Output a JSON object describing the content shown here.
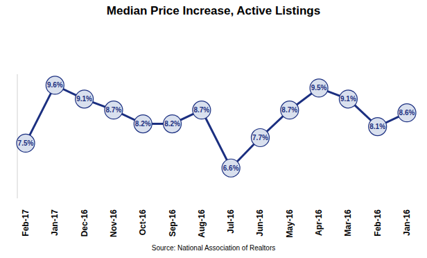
{
  "chart_data": {
    "type": "line",
    "title": "Median Price Increase, Active Listings",
    "source": "Source: National Association of Realtors",
    "categories": [
      "Feb-17",
      "Jan-17",
      "Dec-16",
      "Nov-16",
      "Oct-16",
      "Sep-16",
      "Aug-16",
      "Jul-16",
      "Jun-16",
      "May-16",
      "Apr-16",
      "Mar-16",
      "Feb-16",
      "Jan-16"
    ],
    "values": [
      7.5,
      9.6,
      9.1,
      8.7,
      8.2,
      8.2,
      8.7,
      6.6,
      7.7,
      8.7,
      9.5,
      9.1,
      8.1,
      8.6
    ],
    "value_labels": [
      "7.5%",
      "9.6%",
      "9.1%",
      "8.7%",
      "8.2%",
      "8.2%",
      "8.7%",
      "6.6%",
      "7.7%",
      "8.7%",
      "9.5%",
      "9.1%",
      "8.1%",
      "8.6%"
    ],
    "color": "#1b2f80",
    "marker": "circle",
    "data_labels": true,
    "tick_labels": "x",
    "grid": false,
    "ylim": [
      5.5,
      10
    ]
  }
}
